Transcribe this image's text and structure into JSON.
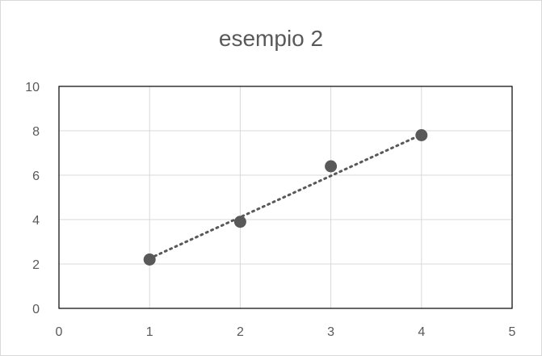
{
  "chart_data": {
    "type": "scatter",
    "title": "esempio 2",
    "xlabel": "",
    "ylabel": "",
    "xlim": [
      0,
      5
    ],
    "ylim": [
      0,
      10
    ],
    "xticks": [
      0,
      1,
      2,
      3,
      4,
      5
    ],
    "yticks": [
      0,
      2,
      4,
      6,
      8,
      10
    ],
    "grid": true,
    "legend": "none",
    "series": [
      {
        "x": [
          1,
          2,
          3,
          4
        ],
        "y": [
          2.2,
          3.9,
          6.4,
          7.8
        ],
        "marker_color": "#595959"
      }
    ],
    "trendline": {
      "type": "linear",
      "style": "dotted",
      "color": "#595959",
      "x": [
        1,
        4
      ],
      "y": [
        2.25,
        7.83
      ]
    }
  },
  "colors": {
    "axis": "#000000",
    "grid": "#d9d9d9",
    "text": "#595959"
  }
}
